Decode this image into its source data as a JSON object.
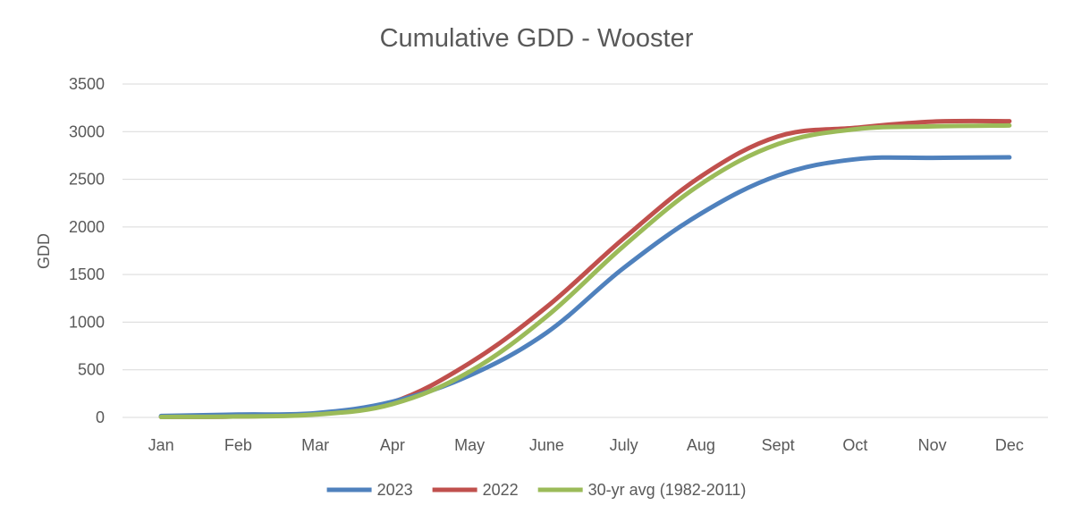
{
  "chart_data": {
    "type": "line",
    "title": "Cumulative GDD - Wooster",
    "xlabel": "",
    "ylabel": "GDD",
    "categories": [
      "Jan",
      "Feb",
      "Mar",
      "Apr",
      "May",
      "June",
      "July",
      "Aug",
      "Sept",
      "Oct",
      "Nov",
      "Dec"
    ],
    "ylim": [
      0,
      3500
    ],
    "yticks": [
      0,
      500,
      1000,
      1500,
      2000,
      2500,
      3000,
      3500
    ],
    "grid": true,
    "legend_position": "bottom",
    "series": [
      {
        "name": "2023",
        "color": "#4f81bd",
        "values": [
          15,
          30,
          45,
          165,
          440,
          890,
          1570,
          2140,
          2540,
          2710,
          2725,
          2730
        ]
      },
      {
        "name": "2022",
        "color": "#c0504d",
        "values": [
          5,
          10,
          40,
          160,
          570,
          1160,
          1880,
          2530,
          2950,
          3040,
          3105,
          3110
        ]
      },
      {
        "name": "30-yr avg (1982-2011)",
        "color": "#9bbb59",
        "values": [
          5,
          10,
          30,
          140,
          480,
          1060,
          1800,
          2450,
          2870,
          3025,
          3055,
          3065
        ]
      }
    ]
  }
}
